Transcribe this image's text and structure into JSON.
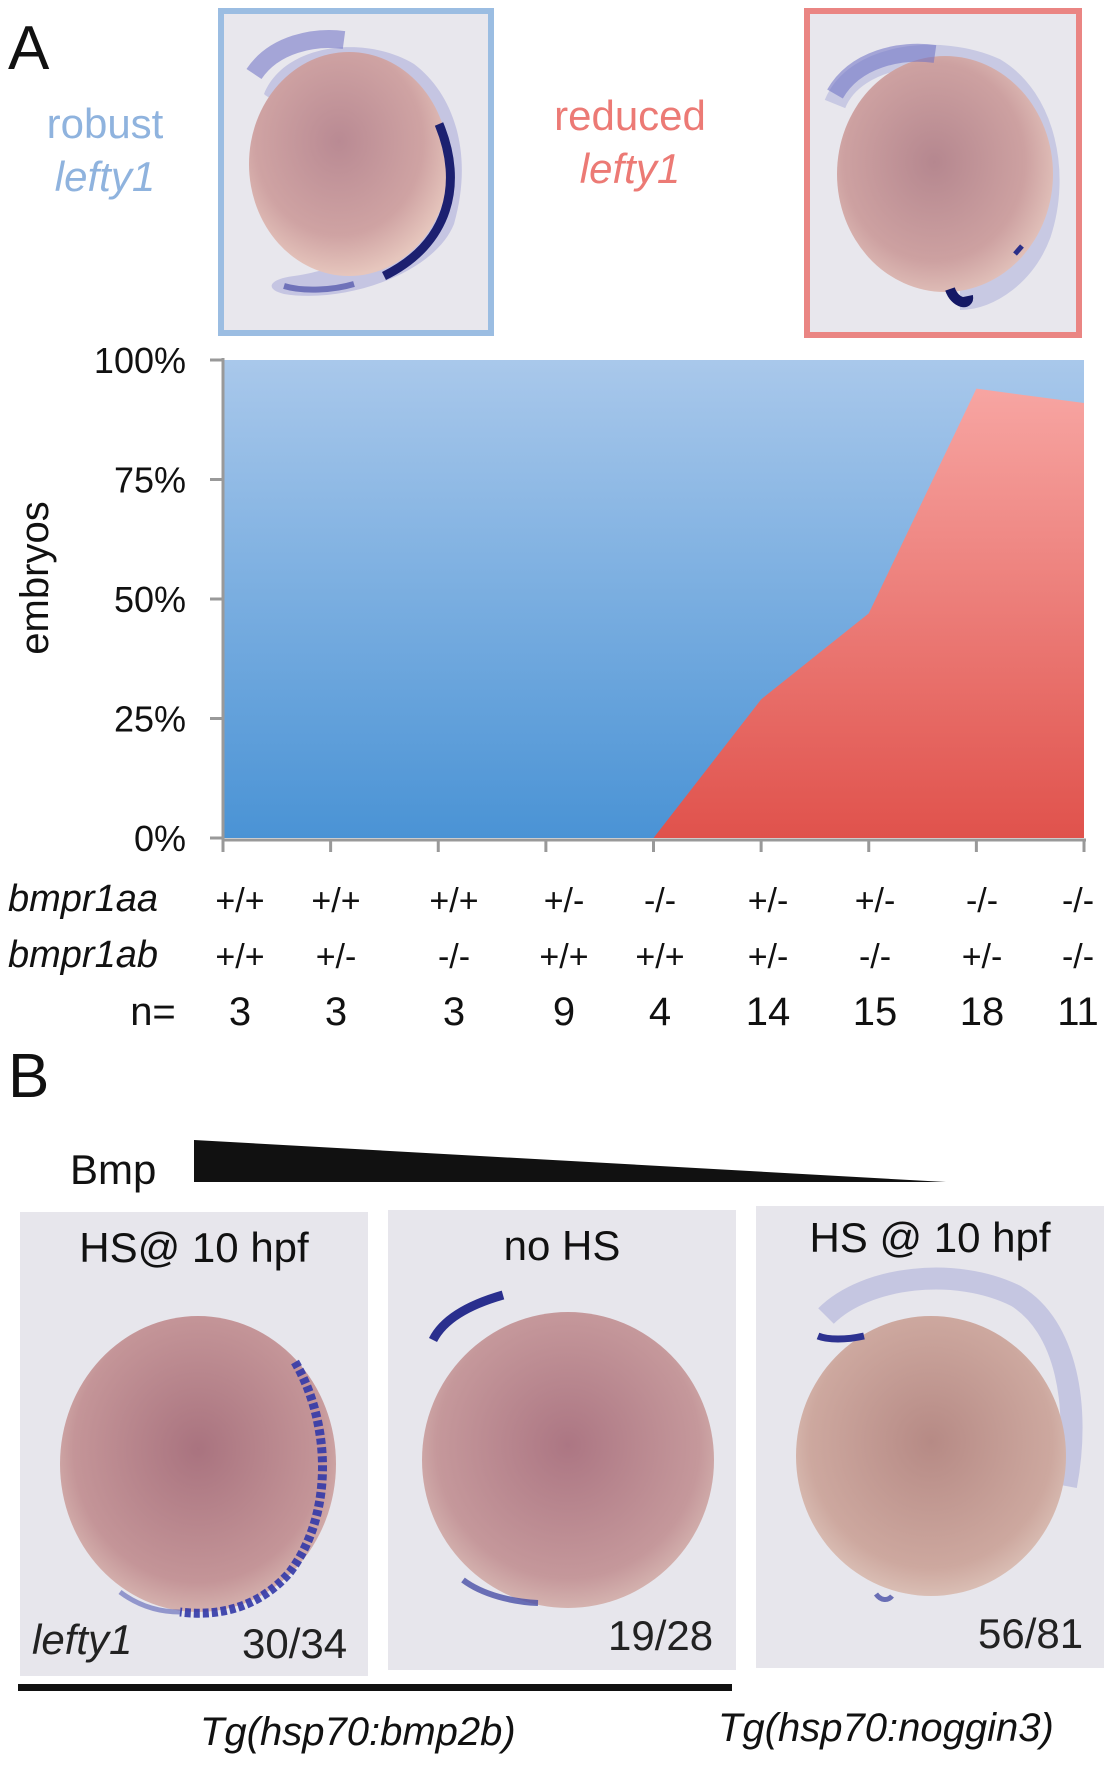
{
  "panel_a": {
    "letter": "A",
    "legend_robust": {
      "line1": "robust",
      "line2": "lefty1",
      "color": "#8fb3de"
    },
    "legend_reduced": {
      "line1": "reduced",
      "line2": "lefty1",
      "color": "#ec7a75"
    },
    "row_labels": {
      "aa": "bmpr1aa",
      "ab": "bmpr1ab",
      "n": "n="
    },
    "columns": [
      {
        "aa": "+/+",
        "ab": "+/+",
        "n": "3"
      },
      {
        "aa": "+/+",
        "ab": "+/-",
        "n": "3"
      },
      {
        "aa": "+/+",
        "ab": "-/-",
        "n": "3"
      },
      {
        "aa": "+/-",
        "ab": "+/+",
        "n": "9"
      },
      {
        "aa": "-/-",
        "ab": "+/+",
        "n": "4"
      },
      {
        "aa": "+/-",
        "ab": "+/-",
        "n": "14"
      },
      {
        "aa": "+/-",
        "ab": "-/-",
        "n": "15"
      },
      {
        "aa": "-/-",
        "ab": "+/-",
        "n": "18"
      },
      {
        "aa": "-/-",
        "ab": "-/-",
        "n": "11"
      }
    ]
  },
  "chart_data": {
    "type": "area",
    "ylabel": "embryos",
    "ylim": [
      0,
      100
    ],
    "yticks": [
      "0%",
      "25%",
      "50%",
      "75%",
      "100%"
    ],
    "x": [
      0,
      1,
      2,
      3,
      4,
      5,
      6,
      7,
      8
    ],
    "series": [
      {
        "name": "reduced lefty1",
        "values": [
          0,
          0,
          0,
          0,
          0,
          29,
          47,
          94,
          91
        ],
        "color": "#e9655f"
      },
      {
        "name": "robust lefty1",
        "values": [
          100,
          100,
          100,
          100,
          100,
          71,
          53,
          6,
          9
        ],
        "color": "#5a9ad6"
      }
    ]
  },
  "panel_b": {
    "letter": "B",
    "gradient_label": "Bmp",
    "panels": [
      {
        "caption": "HS@ 10 hpf",
        "count": "30/34",
        "gene": "lefty1"
      },
      {
        "caption": "no HS",
        "count": "19/28"
      },
      {
        "caption": "HS @ 10 hpf",
        "count": "56/81"
      }
    ],
    "tg_left": "Tg(hsp70:bmp2b)",
    "tg_right": "Tg(hsp70:noggin3)"
  }
}
